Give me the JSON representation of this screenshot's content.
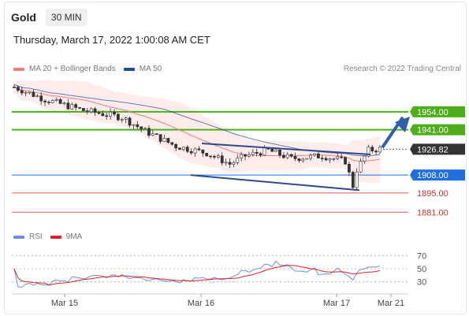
{
  "header": {
    "symbol": "Gold",
    "timeframe": "30 MIN"
  },
  "timestamp": "Thursday, March 17, 2022 1:00:08 AM CET",
  "credit": "Research © 2022 Trading Central",
  "legend_main": [
    {
      "label": "MA 20 + Bollinger Bands",
      "color": "#f08080"
    },
    {
      "label": "MA 50",
      "color": "#1f4e99"
    }
  ],
  "legend_rsi": [
    {
      "label": "RSI",
      "color": "#6d8fe0"
    },
    {
      "label": "9MA",
      "color": "#e02020"
    }
  ],
  "colors": {
    "resistance": "#4caf1a",
    "support_blue": "#1f6fe0",
    "support_red": "#e05a5a",
    "price": "#333333",
    "trend": "#2c4a8a",
    "arrow": "#2f5fa8"
  },
  "chart_data": {
    "type": "candlestick",
    "ylim": [
      1872,
      1978
    ],
    "levels": [
      {
        "value": 1954.0,
        "label": "1954.00",
        "kind": "resistance"
      },
      {
        "value": 1941.0,
        "label": "1941.00",
        "kind": "resistance"
      },
      {
        "value": 1926.82,
        "label": "1926.82",
        "kind": "price"
      },
      {
        "value": 1908.0,
        "label": "1908.00",
        "kind": "support_blue"
      },
      {
        "value": 1895.0,
        "label": "1895.00",
        "kind": "support_red"
      },
      {
        "value": 1881.0,
        "label": "1881.00",
        "kind": "support_red"
      }
    ],
    "x_ticks": [
      "Mar 15",
      "Mar 16",
      "Mar 17",
      "Mar 21"
    ],
    "rsi": {
      "ticks": [
        70,
        50,
        30
      ],
      "ylim": [
        20,
        80
      ]
    }
  }
}
